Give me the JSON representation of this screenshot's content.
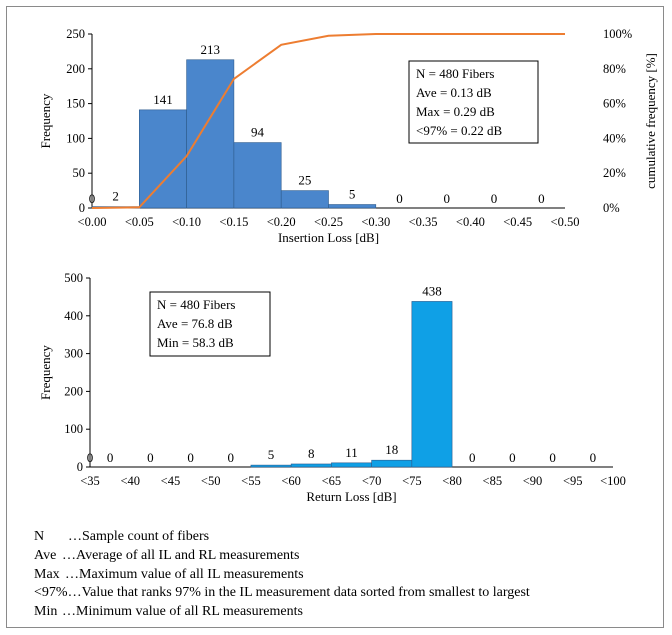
{
  "chart_data": [
    {
      "type": "bar",
      "xlabel": "Insertion Loss [dB]",
      "ylabel": "Frequency",
      "y2label": "cumulative frequency [%]",
      "ylim": [
        0,
        250
      ],
      "yticks": [
        "0",
        "50",
        "100",
        "150",
        "200",
        "250"
      ],
      "y2ticks": [
        "0%",
        "20%",
        "40%",
        "60%",
        "80%",
        "100%"
      ],
      "categories": [
        "<0.00",
        "<0.05",
        "<0.10",
        "<0.15",
        "<0.20",
        "<0.25",
        "<0.30",
        "<0.35",
        "<0.40",
        "<0.45",
        "<0.50"
      ],
      "values": [
        0,
        2,
        141,
        213,
        94,
        25,
        5,
        0,
        0,
        0,
        0
      ],
      "value_labels": [
        "0",
        "2",
        "141",
        "213",
        "94",
        "25",
        "5",
        "0",
        "0",
        "0",
        "0"
      ],
      "bar_color": "#4a86cc",
      "cumulative": [
        0,
        0.4,
        29.8,
        74.2,
        93.8,
        99.0,
        100,
        100,
        100,
        100,
        100
      ],
      "cumulative_color": "#ed7d31",
      "stats_box": [
        "N = 480 Fibers",
        "Ave = 0.13 dB",
        "Max = 0.29 dB",
        "<97% = 0.22 dB"
      ],
      "grid": false
    },
    {
      "type": "bar",
      "xlabel": "Return Loss [dB]",
      "ylabel": "Frequency",
      "ylim": [
        0,
        500
      ],
      "yticks": [
        "0",
        "100",
        "200",
        "300",
        "400",
        "500"
      ],
      "categories": [
        "<35",
        "<40",
        "<45",
        "<50",
        "<55",
        "<60",
        "<65",
        "<70",
        "<75",
        "<80",
        "<85",
        "<90",
        "<95",
        "<100"
      ],
      "values": [
        0,
        0,
        0,
        0,
        0,
        5,
        8,
        11,
        18,
        438,
        0,
        0,
        0,
        0
      ],
      "value_labels": [
        "0",
        "0",
        "0",
        "0",
        "0",
        "5",
        "8",
        "11",
        "18",
        "438",
        "0",
        "0",
        "0",
        "0"
      ],
      "bar_color": "#0fa0e6",
      "stats_box": [
        "N = 480 Fibers",
        "Ave = 76.8 dB",
        "Min = 58.3 dB"
      ],
      "grid": false
    }
  ],
  "legend": [
    {
      "term": "N",
      "text": "…Sample count of fibers"
    },
    {
      "term": "Ave",
      "text": "…Average of all IL and RL measurements"
    },
    {
      "term": "Max",
      "text": "…Maximum value of all IL measurements"
    },
    {
      "term": "<97%",
      "text": "…Value that ranks 97% in the IL measurement data sorted from smallest to largest"
    },
    {
      "term": "Min",
      "text": "…Minimum value of all RL measurements"
    }
  ]
}
